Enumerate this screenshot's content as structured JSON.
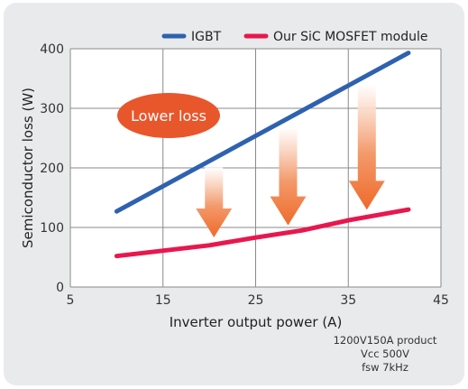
{
  "chart_data": {
    "type": "line",
    "xlabel": "Inverter output power (A)",
    "ylabel": "Semiconductor loss (W)",
    "xlim": [
      5,
      45
    ],
    "ylim": [
      0,
      400
    ],
    "xticks": [
      5,
      15,
      25,
      35,
      45
    ],
    "yticks": [
      0,
      100,
      200,
      300,
      400
    ],
    "grid": true,
    "legend_position": "top-right",
    "series": [
      {
        "name": "IGBT",
        "color": "#2e62b0",
        "x": [
          10,
          41.5
        ],
        "y": [
          127,
          393
        ]
      },
      {
        "name": "Our SiC MOSFET module",
        "color": "#e8174d",
        "x": [
          10,
          20,
          25,
          30,
          35,
          41.5
        ],
        "y": [
          52,
          70,
          83,
          95,
          112,
          130
        ]
      }
    ],
    "annotations": [
      {
        "text": "Lower loss",
        "color": "#e8562b"
      }
    ],
    "arrows_x": [
      20.5,
      28.5,
      37
    ]
  },
  "notes": [
    "1200V150A product",
    "Vcc 500V",
    "fsw 7kHz"
  ]
}
